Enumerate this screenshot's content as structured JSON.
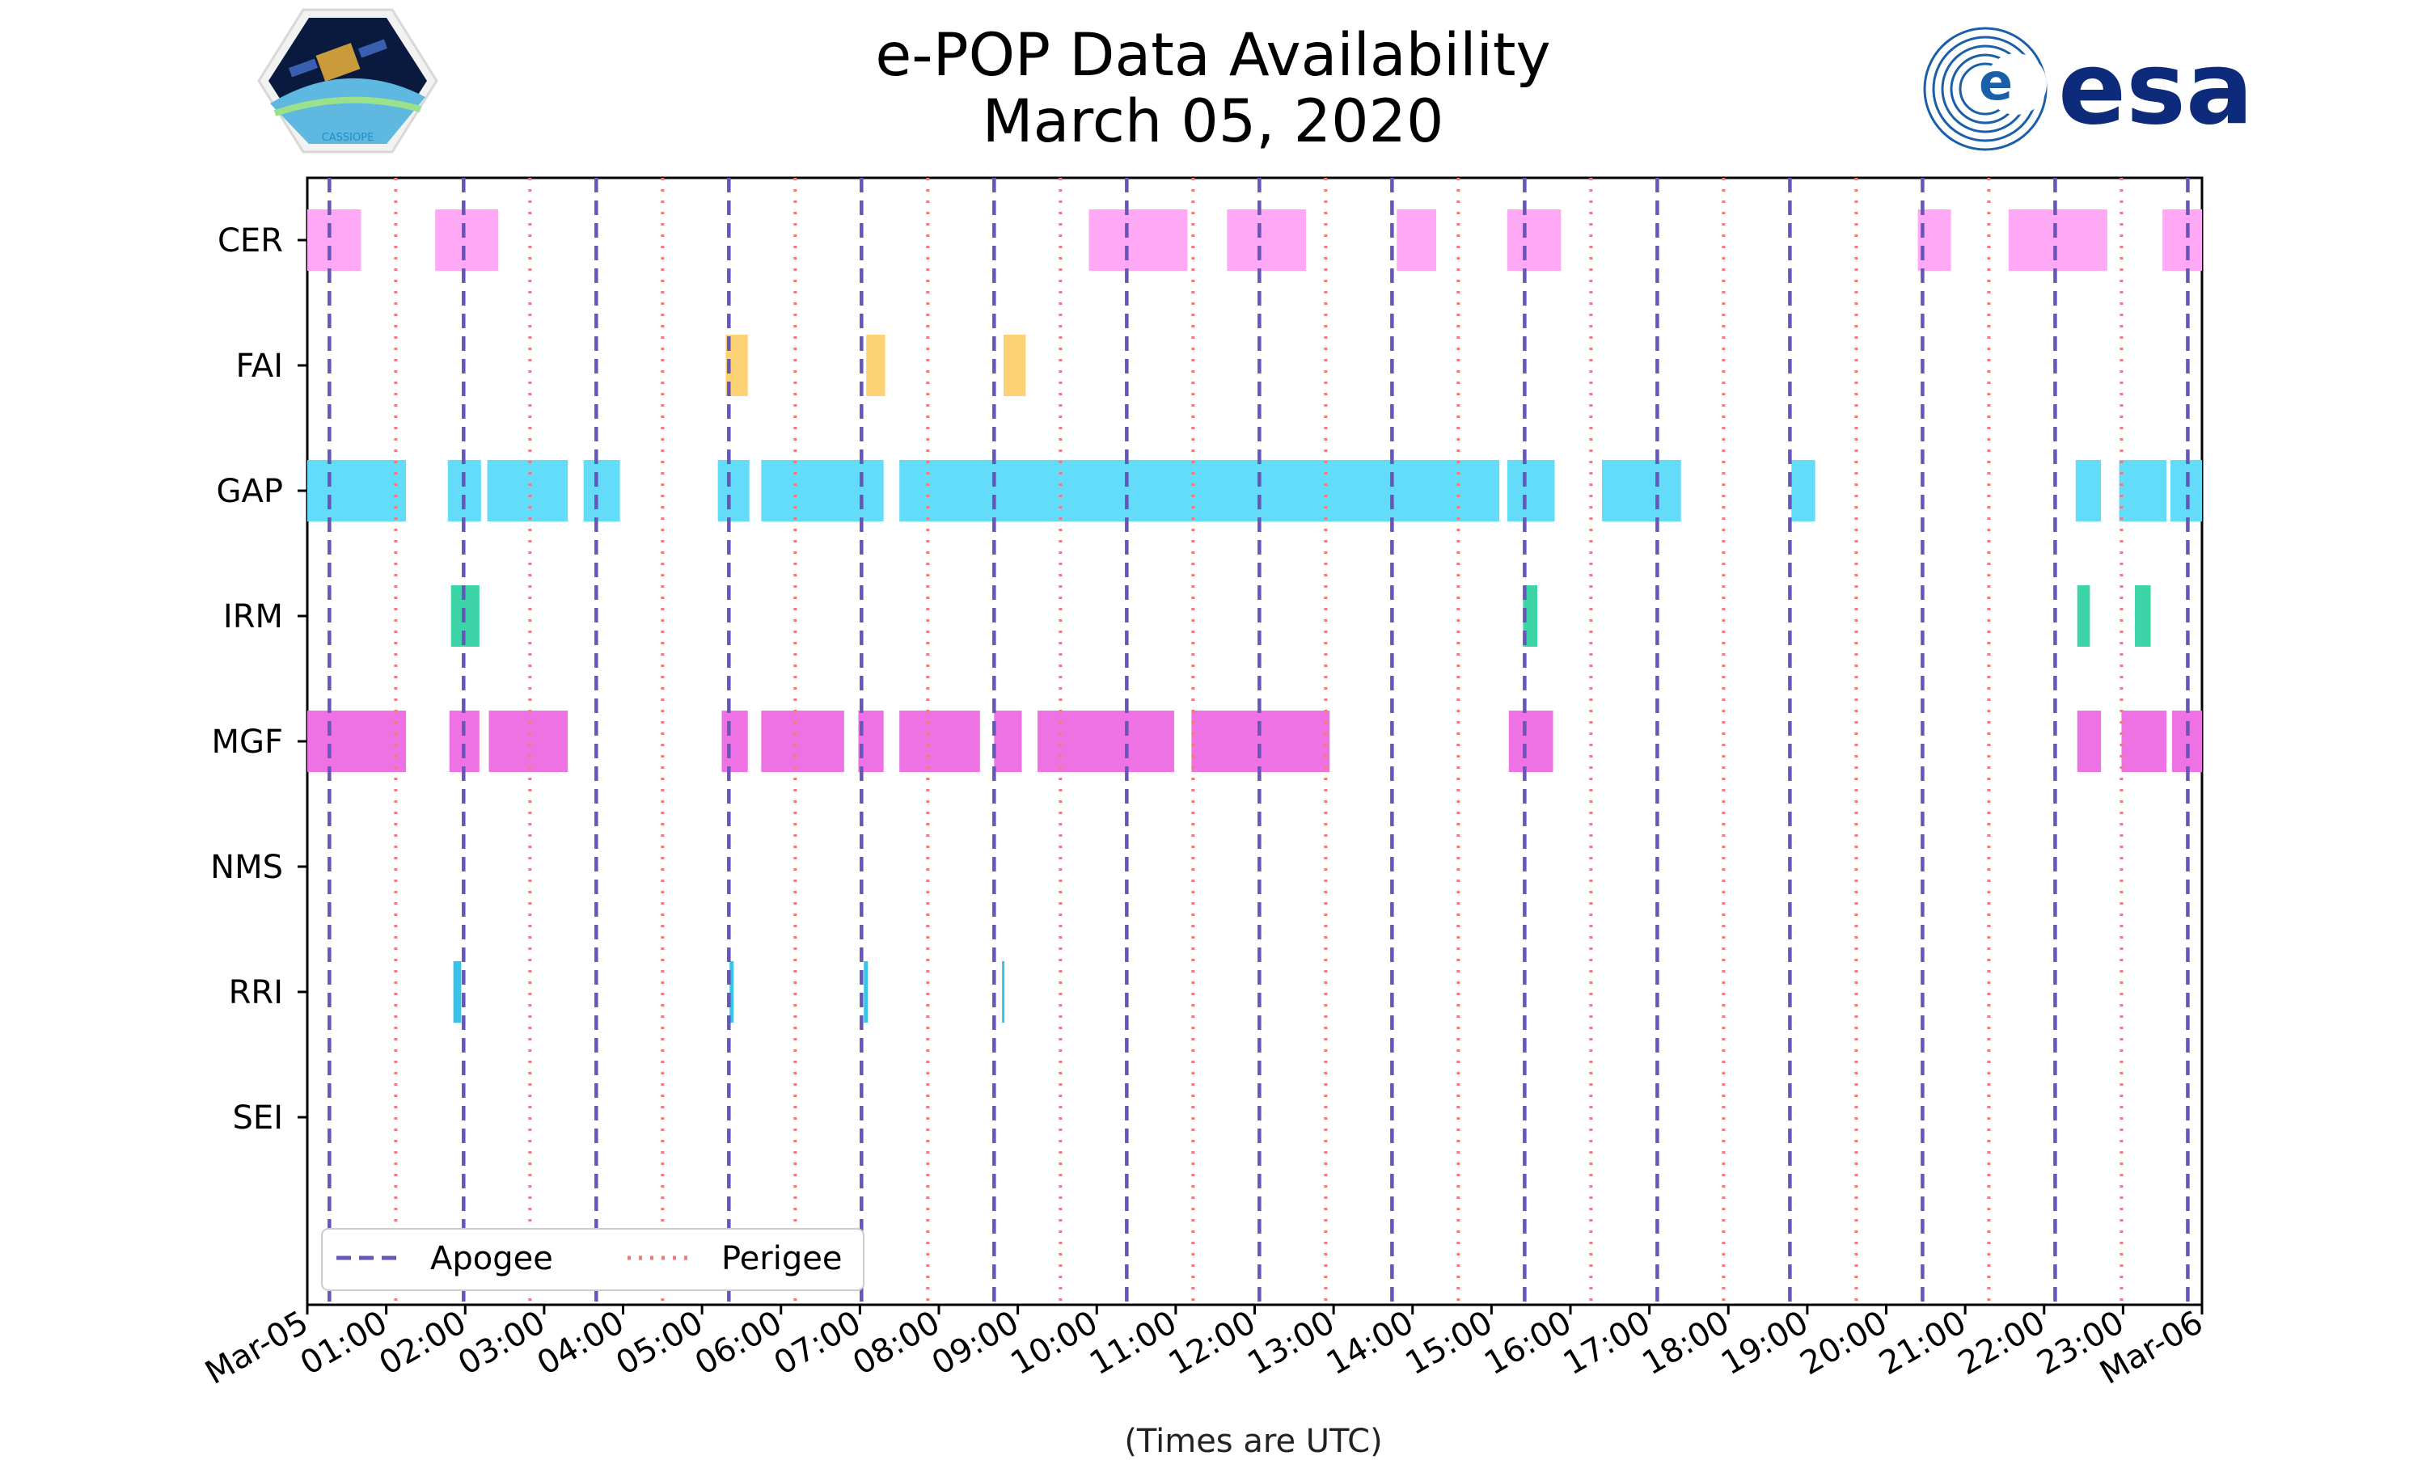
{
  "chart_data": {
    "type": "timeline",
    "title": "e-POP Data Availability",
    "subtitle": "March 05, 2020",
    "xlabel": "(Times are UTC)",
    "x_range_hours": [
      0,
      24
    ],
    "x_tick_labels": [
      "Mar-05",
      "01:00",
      "02:00",
      "03:00",
      "04:00",
      "05:00",
      "06:00",
      "07:00",
      "08:00",
      "09:00",
      "10:00",
      "11:00",
      "12:00",
      "13:00",
      "14:00",
      "15:00",
      "16:00",
      "17:00",
      "18:00",
      "19:00",
      "20:00",
      "21:00",
      "22:00",
      "23:00",
      "Mar-06"
    ],
    "categories": [
      "CER",
      "FAI",
      "GAP",
      "IRM",
      "MGF",
      "NMS",
      "RRI",
      "SEI"
    ],
    "colors": {
      "CER": "#ffa8f5",
      "FAI": "#fdd275",
      "GAP": "#62dcf8",
      "IRM": "#3dd5a8",
      "MGF": "#ef72e4",
      "RRI": "#38c4ea",
      "apogee": "#6656b8",
      "perigee": "#f07a7a"
    },
    "intervals": {
      "CER": [
        [
          0.0,
          0.68
        ],
        [
          1.62,
          2.42
        ],
        [
          9.9,
          11.15
        ],
        [
          11.65,
          12.65
        ],
        [
          13.8,
          14.3
        ],
        [
          15.2,
          15.88
        ],
        [
          20.4,
          20.82
        ],
        [
          21.55,
          22.8
        ],
        [
          23.5,
          24.0
        ]
      ],
      "FAI": [
        [
          5.3,
          5.58
        ],
        [
          7.08,
          7.32
        ],
        [
          8.82,
          9.1
        ]
      ],
      "GAP": [
        [
          0.0,
          1.25
        ],
        [
          1.78,
          2.2
        ],
        [
          2.28,
          3.3
        ],
        [
          3.5,
          3.96
        ],
        [
          5.2,
          5.6
        ],
        [
          5.75,
          7.3
        ],
        [
          7.5,
          15.1
        ],
        [
          15.2,
          15.8
        ],
        [
          16.4,
          17.4
        ],
        [
          18.8,
          19.1
        ],
        [
          22.4,
          22.72
        ],
        [
          22.95,
          23.55
        ],
        [
          23.6,
          24.0
        ]
      ],
      "IRM": [
        [
          1.82,
          2.18
        ],
        [
          15.4,
          15.58
        ],
        [
          22.42,
          22.58
        ],
        [
          23.15,
          23.35
        ]
      ],
      "MGF": [
        [
          0.0,
          1.25
        ],
        [
          1.8,
          2.18
        ],
        [
          2.3,
          3.3
        ],
        [
          5.25,
          5.58
        ],
        [
          5.75,
          6.8
        ],
        [
          6.98,
          7.3
        ],
        [
          7.5,
          8.52
        ],
        [
          8.7,
          9.05
        ],
        [
          9.25,
          10.98
        ],
        [
          11.2,
          12.95
        ],
        [
          15.22,
          15.78
        ],
        [
          22.42,
          22.72
        ],
        [
          22.98,
          23.55
        ],
        [
          23.62,
          24.0
        ]
      ],
      "NMS": [],
      "RRI": [
        [
          1.85,
          1.95
        ],
        [
          5.35,
          5.4
        ],
        [
          7.05,
          7.1
        ],
        [
          8.8,
          8.83
        ]
      ],
      "SEI": []
    },
    "apogee_hours": [
      0.28,
      1.98,
      3.66,
      5.34,
      7.02,
      8.7,
      10.38,
      12.06,
      13.74,
      15.42,
      17.1,
      18.78,
      20.46,
      22.14,
      23.82
    ],
    "perigee_hours": [
      1.12,
      2.82,
      4.5,
      6.18,
      7.86,
      9.54,
      11.22,
      12.9,
      14.58,
      16.26,
      17.94,
      19.62,
      21.3,
      22.98
    ],
    "legend": {
      "apogee": "Apogee",
      "perigee": "Perigee",
      "position": "lower-left"
    }
  },
  "logos": {
    "left": "CASSIOPE",
    "right": "esa"
  }
}
